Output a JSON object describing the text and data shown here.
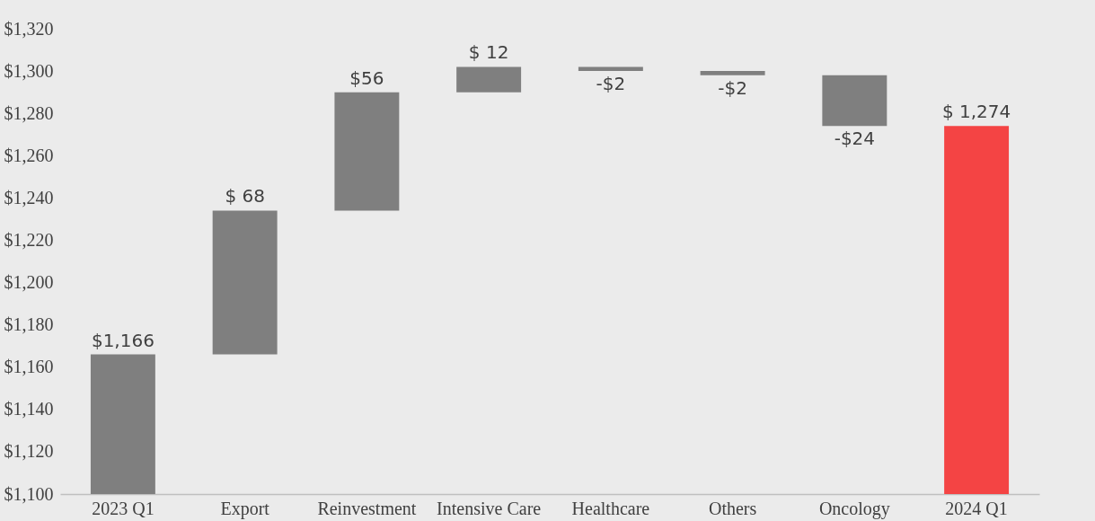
{
  "chart_data": {
    "type": "bar",
    "categories": [
      "2023 Q1",
      "Export",
      "Reinvestment",
      "Intensive Care",
      "Healthcare",
      "Others",
      "Oncology",
      "2024 Q1"
    ],
    "values": [
      1166,
      68,
      56,
      12,
      -2,
      -2,
      -24,
      1274
    ],
    "base": [
      null,
      1166,
      1234,
      1290,
      1302,
      1300,
      1298,
      null
    ],
    "colors": [
      "#7f7f7f",
      "#7f7f7f",
      "#7f7f7f",
      "#7f7f7f",
      "#7f7f7f",
      "#7f7f7f",
      "#7f7f7f",
      "#f44444"
    ],
    "value_labels": [
      "$1,166",
      "$ 68",
      "$56",
      "$ 12",
      "-$2",
      "-$2",
      "-$24",
      "$ 1,274"
    ],
    "ylim": [
      1100,
      1320
    ],
    "yticks": [
      {
        "value": 1100,
        "label": "$1,100"
      },
      {
        "value": 1120,
        "label": "$1,120"
      },
      {
        "value": 1140,
        "label": "$1,140"
      },
      {
        "value": 1160,
        "label": "$1,160"
      },
      {
        "value": 1180,
        "label": "$1,180"
      },
      {
        "value": 1200,
        "label": "$1,200"
      },
      {
        "value": 1220,
        "label": "$1,220"
      },
      {
        "value": 1240,
        "label": "$1,240"
      },
      {
        "value": 1260,
        "label": "$1,260"
      },
      {
        "value": 1280,
        "label": "$1,280"
      },
      {
        "value": 1300,
        "label": "$1,300"
      },
      {
        "value": 1320,
        "label": "$1,320"
      }
    ],
    "grid": false
  }
}
